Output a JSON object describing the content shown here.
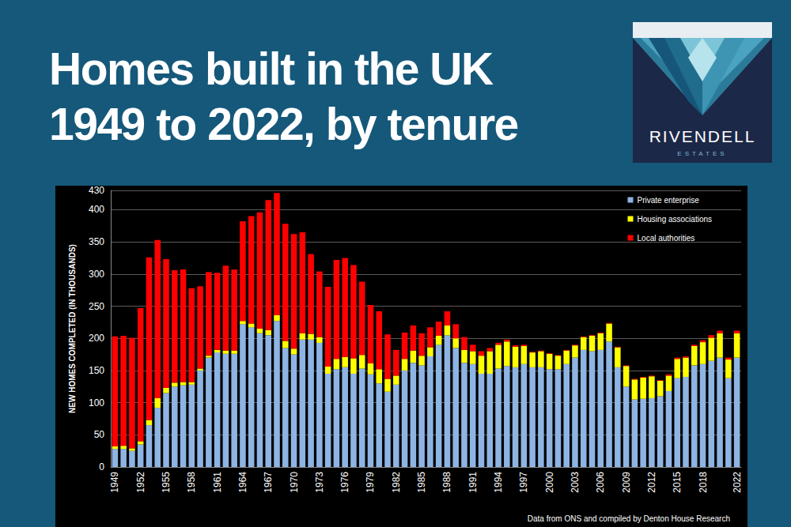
{
  "page": {
    "title_lines": [
      "Homes built in the UK",
      "1949 to 2022, by tenure"
    ],
    "logo": {
      "name": "RIVENDELL",
      "tagline": "ESTATES"
    }
  },
  "chart_data": {
    "type": "bar",
    "stacked": true,
    "grid": true,
    "legend": "top-right",
    "ylabel": "NEW HOMES COMPLETED (IN THOUSANDS)",
    "annotations": [
      "Data from ONS and compiled by Denton House Research"
    ],
    "ylim": [
      0,
      430
    ],
    "yticks": [
      0,
      50,
      100,
      150,
      200,
      250,
      300,
      350,
      400
    ],
    "categories": [
      "1949",
      null,
      null,
      "1952",
      null,
      null,
      "1955",
      null,
      null,
      "1958",
      null,
      null,
      "1961",
      null,
      null,
      "1964",
      null,
      null,
      "1967",
      null,
      null,
      "1970",
      null,
      null,
      "1973",
      null,
      null,
      "1976",
      null,
      null,
      "1979",
      null,
      null,
      "1982",
      null,
      null,
      "1985",
      null,
      null,
      "1988",
      null,
      null,
      "1991",
      null,
      null,
      "1994",
      null,
      null,
      "1997",
      null,
      null,
      "2000",
      null,
      null,
      "2003",
      null,
      null,
      "2006",
      null,
      null,
      "2009",
      null,
      null,
      "2012",
      null,
      null,
      "2015",
      null,
      null,
      "2018",
      null,
      null,
      null,
      "2022"
    ],
    "series": [
      {
        "name": "Private enterprise",
        "color": "#8db4e3",
        "values": [
          28,
          28,
          25,
          35,
          65,
          92,
          115,
          125,
          127,
          128,
          150,
          170,
          178,
          176,
          176,
          222,
          217,
          208,
          205,
          227,
          185,
          175,
          198,
          198,
          193,
          145,
          152,
          155,
          145,
          153,
          144,
          130,
          117,
          128,
          150,
          162,
          158,
          172,
          190,
          205,
          185,
          162,
          160,
          145,
          145,
          153,
          157,
          155,
          160,
          155,
          155,
          152,
          152,
          160,
          170,
          182,
          180,
          182,
          195,
          155,
          125,
          105,
          106,
          107,
          110,
          118,
          138,
          140,
          158,
          160,
          165,
          170,
          138,
          170
        ]
      },
      {
        "name": "Housing associations",
        "color": "#ffff00",
        "values": [
          4,
          5,
          4,
          5,
          8,
          15,
          8,
          6,
          5,
          4,
          3,
          3,
          4,
          5,
          5,
          5,
          6,
          7,
          8,
          9,
          11,
          9,
          10,
          9,
          9,
          11,
          16,
          16,
          24,
          21,
          17,
          22,
          20,
          14,
          18,
          19,
          15,
          14,
          14,
          15,
          15,
          20,
          20,
          28,
          35,
          37,
          38,
          32,
          28,
          23,
          25,
          24,
          21,
          21,
          19,
          20,
          24,
          26,
          28,
          31,
          32,
          31,
          33,
          34,
          24,
          24,
          30,
          30,
          30,
          34,
          36,
          38,
          29,
          38
        ]
      },
      {
        "name": "Local authorities",
        "color": "#ff0000",
        "values": [
          171,
          171,
          172,
          207,
          253,
          246,
          200,
          175,
          175,
          146,
          128,
          130,
          120,
          132,
          126,
          155,
          167,
          181,
          202,
          190,
          182,
          178,
          157,
          124,
          102,
          124,
          154,
          154,
          145,
          114,
          91,
          90,
          69,
          40,
          41,
          39,
          35,
          31,
          22,
          22,
          22,
          20,
          10,
          7,
          5,
          3,
          3,
          2,
          2,
          1,
          1,
          1,
          1,
          1,
          1,
          1,
          1,
          1,
          1,
          1,
          1,
          1,
          1,
          1,
          1,
          2,
          2,
          2,
          2,
          3,
          4,
          4,
          3,
          4
        ]
      }
    ]
  }
}
